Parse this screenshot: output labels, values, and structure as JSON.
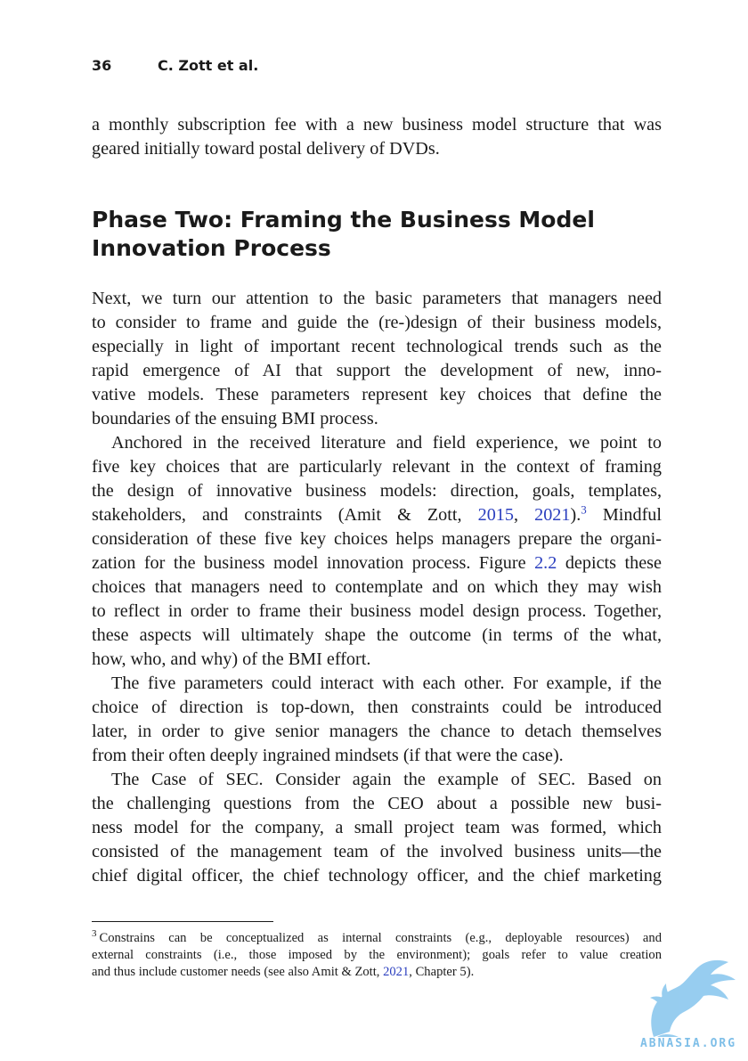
{
  "header": {
    "page_number": "36",
    "authors": "C. Zott et al."
  },
  "intro_lines": [
    "a monthly subscription fee with a new business model structure that was",
    "geared initially toward postal delivery of DVDs."
  ],
  "section": {
    "heading_lines": [
      "Phase Two: Framing the Business Model",
      "Innovation Process"
    ]
  },
  "para1_lines": [
    "Next, we turn our attention to the basic parameters that managers need",
    "to consider to frame and guide the (re-)design of their business models,",
    "especially in light of important recent technological trends such as the",
    "rapid emergence of AI that support the development of new, inno-",
    "vative models. These parameters represent key choices that define the",
    "boundaries of the ensuing BMI process."
  ],
  "para2": {
    "l1": "Anchored in the received literature and field experience, we point to",
    "l2": "five key choices that are particularly relevant in the context of framing",
    "l3": "the design of innovative business models: direction, goals, templates,",
    "l4_pre": "stakeholders, and constraints (Amit & Zott, ",
    "cite1": "2015",
    "l4_sep": ", ",
    "cite2": "2021",
    "l4_close": ").",
    "fn_ref": "3",
    "l4_post": " Mindful",
    "l5": "consideration of these five key choices helps managers prepare the organi-",
    "l6_pre": "zation for the business model innovation process. Figure ",
    "figure_ref": "2.2",
    "l6_post": " depicts these",
    "l7": "choices that managers need to contemplate and on which they may wish",
    "l8": "to reflect in order to frame their business model design process. Together,",
    "l9": "these aspects will ultimately shape the outcome (in terms of the what,",
    "l10": "how, who, and why) of the BMI effort."
  },
  "para3_lines": [
    "The five parameters could interact with each other. For example, if the",
    "choice of direction is top-down, then constraints could be introduced",
    "later, in order to give senior managers the chance to detach themselves",
    "from their often deeply ingrained mindsets (if that were the case)."
  ],
  "para4_lines": [
    "The Case of SEC. Consider again the example of SEC. Based on",
    "the challenging questions from the CEO about a possible new busi-",
    "ness model for the company, a small project team was formed, which",
    "consisted of the management team of the involved business units—the",
    "chief digital officer, the chief technology officer, and the chief marketing"
  ],
  "footnote": {
    "mark": "3",
    "l1": "Constrains can be conceptualized as internal constraints (e.g., deployable resources) and",
    "l2": "external constraints (i.e., those imposed by the environment); goals refer to value creation",
    "l3_pre": "and thus include customer needs (see also Amit & Zott, ",
    "cite": "2021",
    "l3_post": ", Chapter 5)."
  },
  "watermark": {
    "text": "ABNASIA.ORG",
    "color": "#7fbfe8"
  }
}
